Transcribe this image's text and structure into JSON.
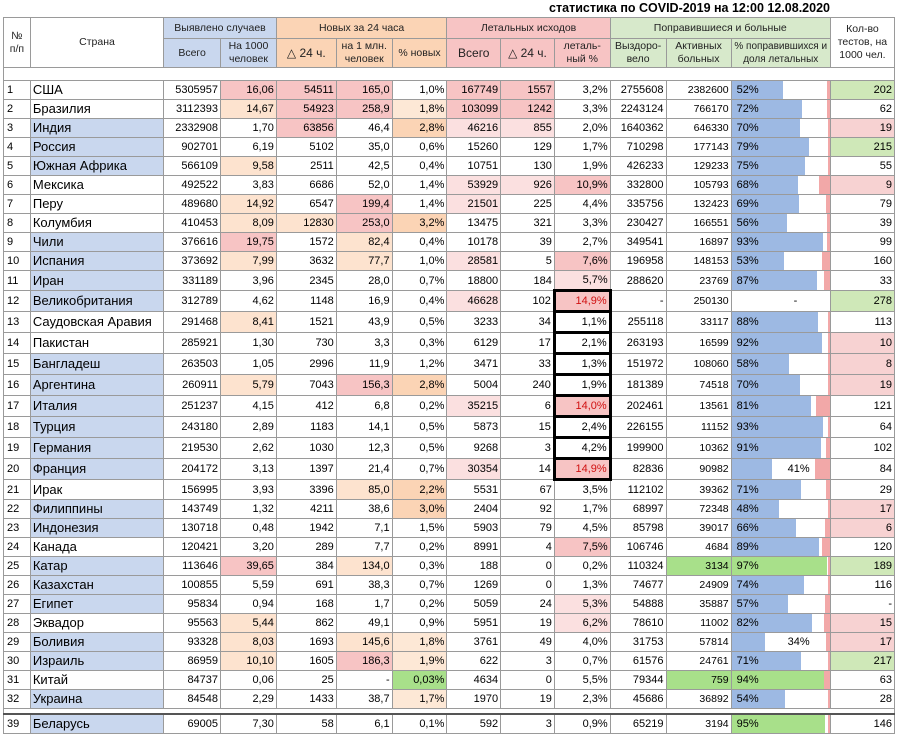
{
  "title": "статистика по COVID-2019 на 12:00 12.08.2020",
  "headers": {
    "num": "№ п/п",
    "country": "Страна",
    "detected": "Выявлено случаев",
    "detected_total": "Всего",
    "detected_per1000": "На 1000 человек",
    "new24": "Новых за 24 часа",
    "new_delta": "△ 24 ч.",
    "new_per_mln": "на 1 млн. человек",
    "new_pct": "% новых",
    "deaths": "Летальных исходов",
    "deaths_total": "Всего",
    "deaths_delta": "△ 24 ч.",
    "deaths_pct": "леталь-ный %",
    "recovered_group": "Поправившиеся и больные",
    "recovered": "Выздоро-вело",
    "active": "Активных больных",
    "recovered_pct": "% поправившихся и доля летальных",
    "tests": "Кол-во тестов, на 1000 чел."
  },
  "rows": [
    {
      "n": "1",
      "country": "США",
      "total": "5305957",
      "per1000": "16,06",
      "new": "54511",
      "per_mln": "165,0",
      "new_pct": "1,0%",
      "deaths": "167749",
      "deaths_new": "1557",
      "lethal": "3,2%",
      "recovered": "2755608",
      "active": "2382600",
      "rec_pct": "52%",
      "rec_frac": 0.52,
      "tests": "202"
    },
    {
      "n": "2",
      "country": "Бразилия",
      "total": "3112393",
      "per1000": "14,67",
      "new": "54923",
      "per_mln": "258,9",
      "new_pct": "1,8%",
      "deaths": "103099",
      "deaths_new": "1242",
      "lethal": "3,3%",
      "recovered": "2243124",
      "active": "766170",
      "rec_pct": "72%",
      "rec_frac": 0.72,
      "tests": "62"
    },
    {
      "n": "3",
      "country": "Индия",
      "total": "2332908",
      "per1000": "1,70",
      "new": "63856",
      "per_mln": "46,4",
      "new_pct": "2,8%",
      "deaths": "46216",
      "deaths_new": "855",
      "lethal": "2,0%",
      "recovered": "1640362",
      "active": "646330",
      "rec_pct": "70%",
      "rec_frac": 0.7,
      "tests": "19"
    },
    {
      "n": "4",
      "country": "Россия",
      "total": "902701",
      "per1000": "6,19",
      "new": "5102",
      "per_mln": "35,0",
      "new_pct": "0,6%",
      "deaths": "15260",
      "deaths_new": "129",
      "lethal": "1,7%",
      "recovered": "710298",
      "active": "177143",
      "rec_pct": "79%",
      "rec_frac": 0.79,
      "tests": "215"
    },
    {
      "n": "5",
      "country": "Южная Африка",
      "total": "566109",
      "per1000": "9,58",
      "new": "2511",
      "per_mln": "42,5",
      "new_pct": "0,4%",
      "deaths": "10751",
      "deaths_new": "130",
      "lethal": "1,9%",
      "recovered": "426233",
      "active": "129233",
      "rec_pct": "75%",
      "rec_frac": 0.75,
      "tests": "55"
    },
    {
      "n": "6",
      "country": "Мексика",
      "total": "492522",
      "per1000": "3,83",
      "new": "6686",
      "per_mln": "52,0",
      "new_pct": "1,4%",
      "deaths": "53929",
      "deaths_new": "926",
      "lethal": "10,9%",
      "recovered": "332800",
      "active": "105793",
      "rec_pct": "68%",
      "rec_frac": 0.68,
      "tests": "9"
    },
    {
      "n": "7",
      "country": "Перу",
      "total": "489680",
      "per1000": "14,92",
      "new": "6547",
      "per_mln": "199,4",
      "new_pct": "1,4%",
      "deaths": "21501",
      "deaths_new": "225",
      "lethal": "4,4%",
      "recovered": "335756",
      "active": "132423",
      "rec_pct": "69%",
      "rec_frac": 0.69,
      "tests": "79"
    },
    {
      "n": "8",
      "country": "Колумбия",
      "total": "410453",
      "per1000": "8,09",
      "new": "12830",
      "per_mln": "253,0",
      "new_pct": "3,2%",
      "deaths": "13475",
      "deaths_new": "321",
      "lethal": "3,3%",
      "recovered": "230427",
      "active": "166551",
      "rec_pct": "56%",
      "rec_frac": 0.56,
      "tests": "39"
    },
    {
      "n": "9",
      "country": "Чили",
      "total": "376616",
      "per1000": "19,75",
      "new": "1572",
      "per_mln": "82,4",
      "new_pct": "0,4%",
      "deaths": "10178",
      "deaths_new": "39",
      "lethal": "2,7%",
      "recovered": "349541",
      "active": "16897",
      "rec_pct": "93%",
      "rec_frac": 0.93,
      "tests": "99"
    },
    {
      "n": "10",
      "country": "Испания",
      "total": "373692",
      "per1000": "7,99",
      "new": "3632",
      "per_mln": "77,7",
      "new_pct": "1,0%",
      "deaths": "28581",
      "deaths_new": "5",
      "lethal": "7,6%",
      "recovered": "196958",
      "active": "148153",
      "rec_pct": "53%",
      "rec_frac": 0.53,
      "tests": "160"
    },
    {
      "n": "11",
      "country": "Иран",
      "total": "331189",
      "per1000": "3,96",
      "new": "2345",
      "per_mln": "28,0",
      "new_pct": "0,7%",
      "deaths": "18800",
      "deaths_new": "184",
      "lethal": "5,7%",
      "recovered": "288620",
      "active": "23769",
      "rec_pct": "87%",
      "rec_frac": 0.87,
      "tests": "33"
    },
    {
      "n": "12",
      "country": "Великобритания",
      "total": "312789",
      "per1000": "4,62",
      "new": "1148",
      "per_mln": "16,9",
      "new_pct": "0,4%",
      "deaths": "46628",
      "deaths_new": "102",
      "lethal": "14,9%",
      "recovered": "-",
      "active": "250130",
      "rec_pct": "-",
      "rec_frac": 0,
      "tests": "278"
    },
    {
      "n": "13",
      "country": "Саудовская Аравия",
      "total": "291468",
      "per1000": "8,41",
      "new": "1521",
      "per_mln": "43,9",
      "new_pct": "0,5%",
      "deaths": "3233",
      "deaths_new": "34",
      "lethal": "1,1%",
      "recovered": "255118",
      "active": "33117",
      "rec_pct": "88%",
      "rec_frac": 0.88,
      "tests": "113"
    },
    {
      "n": "14",
      "country": "Пакистан",
      "total": "285921",
      "per1000": "1,30",
      "new": "730",
      "per_mln": "3,3",
      "new_pct": "0,3%",
      "deaths": "6129",
      "deaths_new": "17",
      "lethal": "2,1%",
      "recovered": "263193",
      "active": "16599",
      "rec_pct": "92%",
      "rec_frac": 0.92,
      "tests": "10"
    },
    {
      "n": "15",
      "country": "Бангладеш",
      "total": "263503",
      "per1000": "1,05",
      "new": "2996",
      "per_mln": "11,9",
      "new_pct": "1,2%",
      "deaths": "3471",
      "deaths_new": "33",
      "lethal": "1,3%",
      "recovered": "151972",
      "active": "108060",
      "rec_pct": "58%",
      "rec_frac": 0.58,
      "tests": "8"
    },
    {
      "n": "16",
      "country": "Аргентина",
      "total": "260911",
      "per1000": "5,79",
      "new": "7043",
      "per_mln": "156,3",
      "new_pct": "2,8%",
      "deaths": "5004",
      "deaths_new": "240",
      "lethal": "1,9%",
      "recovered": "181389",
      "active": "74518",
      "rec_pct": "70%",
      "rec_frac": 0.7,
      "tests": "19"
    },
    {
      "n": "17",
      "country": "Италия",
      "total": "251237",
      "per1000": "4,15",
      "new": "412",
      "per_mln": "6,8",
      "new_pct": "0,2%",
      "deaths": "35215",
      "deaths_new": "6",
      "lethal": "14,0%",
      "recovered": "202461",
      "active": "13561",
      "rec_pct": "81%",
      "rec_frac": 0.81,
      "tests": "121"
    },
    {
      "n": "18",
      "country": "Турция",
      "total": "243180",
      "per1000": "2,89",
      "new": "1183",
      "per_mln": "14,1",
      "new_pct": "0,5%",
      "deaths": "5873",
      "deaths_new": "15",
      "lethal": "2,4%",
      "recovered": "226155",
      "active": "11152",
      "rec_pct": "93%",
      "rec_frac": 0.93,
      "tests": "64"
    },
    {
      "n": "19",
      "country": "Германия",
      "total": "219530",
      "per1000": "2,62",
      "new": "1030",
      "per_mln": "12,3",
      "new_pct": "0,5%",
      "deaths": "9268",
      "deaths_new": "3",
      "lethal": "4,2%",
      "recovered": "199900",
      "active": "10362",
      "rec_pct": "91%",
      "rec_frac": 0.91,
      "tests": "102"
    },
    {
      "n": "20",
      "country": "Франция",
      "total": "204172",
      "per1000": "3,13",
      "new": "1397",
      "per_mln": "21,4",
      "new_pct": "0,7%",
      "deaths": "30354",
      "deaths_new": "14",
      "lethal": "14,9%",
      "recovered": "82836",
      "active": "90982",
      "rec_pct": "41%",
      "rec_frac": 0.41,
      "tests": "84"
    },
    {
      "n": "21",
      "country": "Ирак",
      "total": "156995",
      "per1000": "3,93",
      "new": "3396",
      "per_mln": "85,0",
      "new_pct": "2,2%",
      "deaths": "5531",
      "deaths_new": "67",
      "lethal": "3,5%",
      "recovered": "112102",
      "active": "39362",
      "rec_pct": "71%",
      "rec_frac": 0.71,
      "tests": "29"
    },
    {
      "n": "22",
      "country": "Филиппины",
      "total": "143749",
      "per1000": "1,32",
      "new": "4211",
      "per_mln": "38,6",
      "new_pct": "3,0%",
      "deaths": "2404",
      "deaths_new": "92",
      "lethal": "1,7%",
      "recovered": "68997",
      "active": "72348",
      "rec_pct": "48%",
      "rec_frac": 0.48,
      "tests": "17"
    },
    {
      "n": "23",
      "country": "Индонезия",
      "total": "130718",
      "per1000": "0,48",
      "new": "1942",
      "per_mln": "7,1",
      "new_pct": "1,5%",
      "deaths": "5903",
      "deaths_new": "79",
      "lethal": "4,5%",
      "recovered": "85798",
      "active": "39017",
      "rec_pct": "66%",
      "rec_frac": 0.66,
      "tests": "6"
    },
    {
      "n": "24",
      "country": "Канада",
      "total": "120421",
      "per1000": "3,20",
      "new": "289",
      "per_mln": "7,7",
      "new_pct": "0,2%",
      "deaths": "8991",
      "deaths_new": "4",
      "lethal": "7,5%",
      "recovered": "106746",
      "active": "4684",
      "rec_pct": "89%",
      "rec_frac": 0.89,
      "tests": "120"
    },
    {
      "n": "25",
      "country": "Катар",
      "total": "113646",
      "per1000": "39,65",
      "new": "384",
      "per_mln": "134,0",
      "new_pct": "0,3%",
      "deaths": "188",
      "deaths_new": "0",
      "lethal": "0,2%",
      "recovered": "110324",
      "active": "3134",
      "rec_pct": "97%",
      "rec_frac": 0.97,
      "tests": "189"
    },
    {
      "n": "26",
      "country": "Казахстан",
      "total": "100855",
      "per1000": "5,59",
      "new": "691",
      "per_mln": "38,3",
      "new_pct": "0,7%",
      "deaths": "1269",
      "deaths_new": "0",
      "lethal": "1,3%",
      "recovered": "74677",
      "active": "24909",
      "rec_pct": "74%",
      "rec_frac": 0.74,
      "tests": "116"
    },
    {
      "n": "27",
      "country": "Египет",
      "total": "95834",
      "per1000": "0,94",
      "new": "168",
      "per_mln": "1,7",
      "new_pct": "0,2%",
      "deaths": "5059",
      "deaths_new": "24",
      "lethal": "5,3%",
      "recovered": "54888",
      "active": "35887",
      "rec_pct": "57%",
      "rec_frac": 0.57,
      "tests": "-"
    },
    {
      "n": "28",
      "country": "Эквадор",
      "total": "95563",
      "per1000": "5,44",
      "new": "862",
      "per_mln": "49,1",
      "new_pct": "0,9%",
      "deaths": "5951",
      "deaths_new": "19",
      "lethal": "6,2%",
      "recovered": "78610",
      "active": "11002",
      "rec_pct": "82%",
      "rec_frac": 0.82,
      "tests": "15"
    },
    {
      "n": "29",
      "country": "Боливия",
      "total": "93328",
      "per1000": "8,03",
      "new": "1693",
      "per_mln": "145,6",
      "new_pct": "1,8%",
      "deaths": "3761",
      "deaths_new": "49",
      "lethal": "4,0%",
      "recovered": "31753",
      "active": "57814",
      "rec_pct": "34%",
      "rec_frac": 0.34,
      "tests": "17"
    },
    {
      "n": "30",
      "country": "Израиль",
      "total": "86959",
      "per1000": "10,10",
      "new": "1605",
      "per_mln": "186,3",
      "new_pct": "1,9%",
      "deaths": "622",
      "deaths_new": "3",
      "lethal": "0,7%",
      "recovered": "61576",
      "active": "24761",
      "rec_pct": "71%",
      "rec_frac": 0.71,
      "tests": "217"
    },
    {
      "n": "31",
      "country": "Китай",
      "total": "84737",
      "per1000": "0,06",
      "new": "25",
      "per_mln": "-",
      "new_pct": "0,03%",
      "deaths": "4634",
      "deaths_new": "0",
      "lethal": "5,5%",
      "recovered": "79344",
      "active": "759",
      "rec_pct": "94%",
      "rec_frac": 0.94,
      "tests": "63"
    },
    {
      "n": "32",
      "country": "Украина",
      "total": "84548",
      "per1000": "2,29",
      "new": "1433",
      "per_mln": "38,7",
      "new_pct": "1,7%",
      "deaths": "1970",
      "deaths_new": "19",
      "lethal": "2,3%",
      "recovered": "45686",
      "active": "36892",
      "rec_pct": "54%",
      "rec_frac": 0.54,
      "tests": "28"
    }
  ],
  "belarus": {
    "n": "39",
    "country": "Беларусь",
    "total": "69005",
    "per1000": "7,30",
    "new": "58",
    "per_mln": "6,1",
    "new_pct": "0,1%",
    "deaths": "592",
    "deaths_new": "3",
    "lethal": "0,9%",
    "recovered": "65219",
    "active": "3194",
    "rec_pct": "95%",
    "rec_frac": 0.95,
    "tests": "146"
  },
  "colors": {
    "blue": "#c9d7ee",
    "orange": "#fbd4b5",
    "pink": "#f7c4c4",
    "green": "#d7e9cb",
    "bar_blue": "#9db9e3",
    "bar_green": "#a8e08a",
    "bar_pink": "#f2a8a8",
    "red_text": "#d01010"
  }
}
